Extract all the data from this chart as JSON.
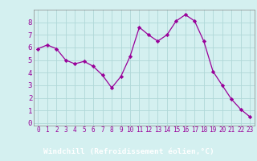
{
  "x": [
    0,
    1,
    2,
    3,
    4,
    5,
    6,
    7,
    8,
    9,
    10,
    11,
    12,
    13,
    14,
    15,
    16,
    17,
    18,
    19,
    20,
    21,
    22,
    23
  ],
  "y": [
    5.9,
    6.2,
    5.9,
    5.0,
    4.7,
    4.9,
    4.5,
    3.8,
    2.8,
    3.7,
    5.3,
    7.6,
    7.0,
    6.5,
    7.0,
    8.1,
    8.6,
    8.1,
    6.5,
    4.1,
    3.0,
    1.9,
    1.1,
    0.5
  ],
  "line_color": "#990099",
  "marker_color": "#990099",
  "bg_color": "#d4f0f0",
  "grid_color": "#b0d8d8",
  "xlabel": "Windchill (Refroidissement éolien,°C)",
  "xlabel_color": "#cc00cc",
  "xlabel_bg": "#d4f0f0",
  "ytick_color": "#990099",
  "xtick_color": "#990099",
  "yticks": [
    0,
    1,
    2,
    3,
    4,
    5,
    6,
    7,
    8
  ],
  "xticks": [
    0,
    1,
    2,
    3,
    4,
    5,
    6,
    7,
    8,
    9,
    10,
    11,
    12,
    13,
    14,
    15,
    16,
    17,
    18,
    19,
    20,
    21,
    22,
    23
  ],
  "ylim": [
    -0.2,
    9.0
  ],
  "xlim": [
    -0.5,
    23.5
  ],
  "bottom_bar_color": "#660066",
  "bottom_bar_text": "Windchill (Refroidissement éolien,°C)",
  "bottom_bar_text_color": "#ffffff"
}
